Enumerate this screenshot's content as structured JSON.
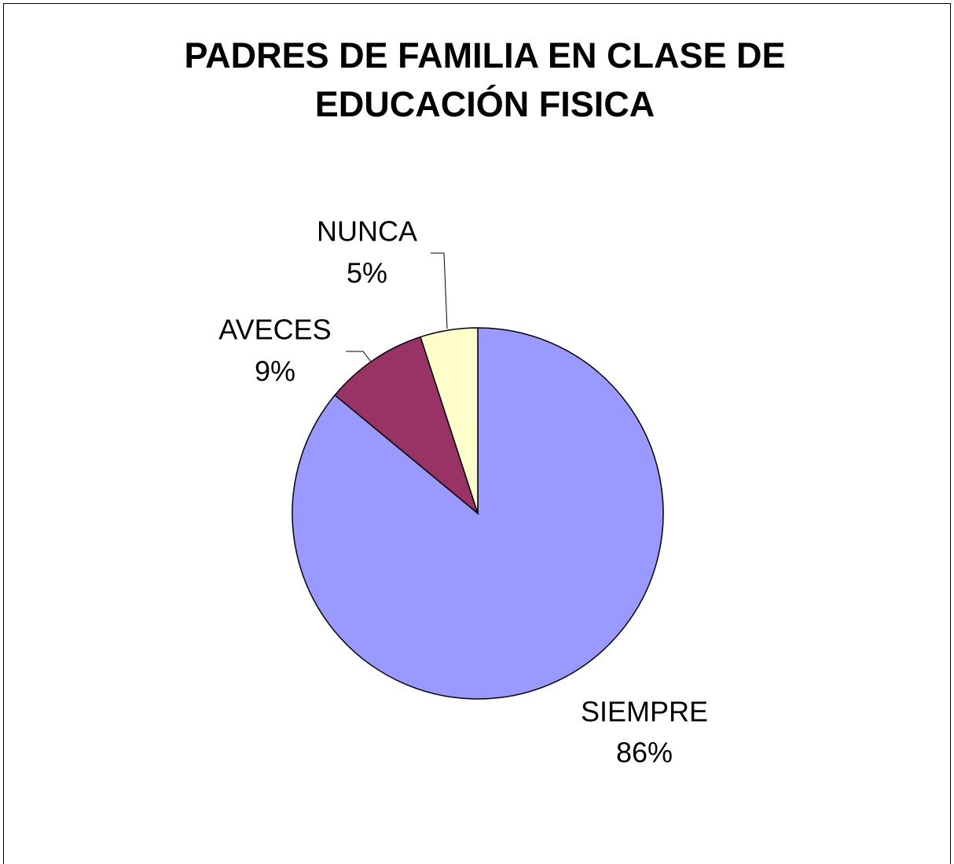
{
  "chart_data": {
    "type": "pie",
    "title": "PADRES DE FAMILIA EN CLASE DE EDUCACIÓN FISICA",
    "categories": [
      "SIEMPRE",
      "AVECES",
      "NUNCA"
    ],
    "values": [
      86,
      9,
      5
    ],
    "value_labels": [
      "86%",
      "9%",
      "5%"
    ],
    "colors": [
      "#9999ff",
      "#993366",
      "#ffffcc"
    ]
  }
}
